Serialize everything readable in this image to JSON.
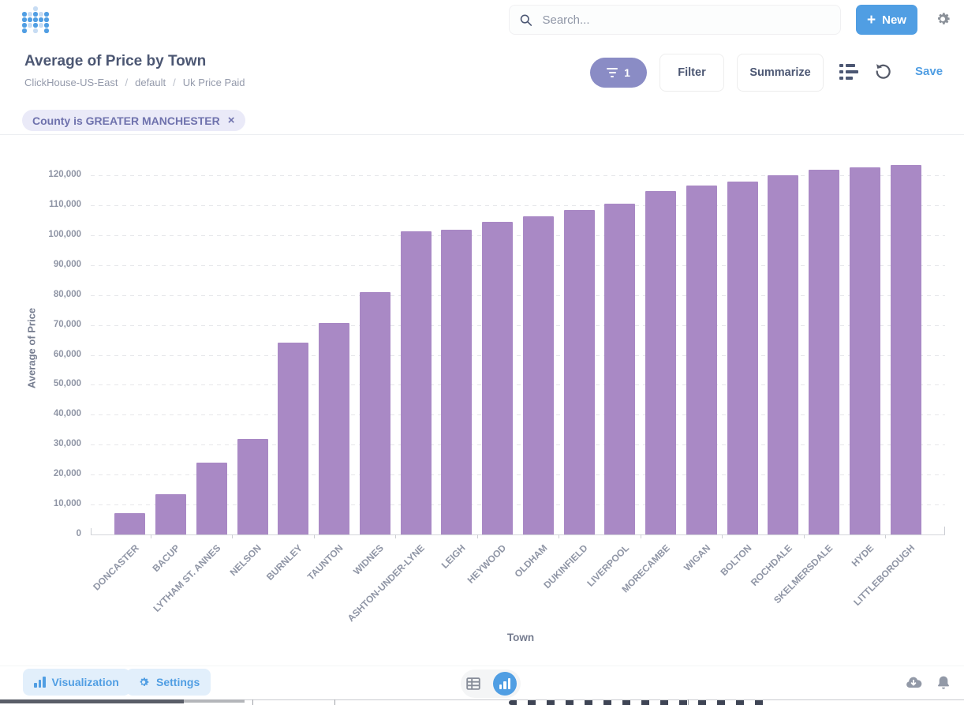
{
  "header": {
    "search_placeholder": "Search...",
    "plus": "+",
    "new_label": "New"
  },
  "question": {
    "title": "Average of Price by Town",
    "breadcrumb": [
      "ClickHouse-US-East",
      "default",
      "Uk Price Paid"
    ],
    "sep": "/",
    "filter_count": "1",
    "filter_label": "Filter",
    "summarize_label": "Summarize",
    "save_label": "Save"
  },
  "filter_chip": {
    "label": "County is GREATER MANCHESTER",
    "close": "×"
  },
  "chart_data": {
    "type": "bar",
    "title": "Average of Price by Town",
    "xlabel": "Town",
    "ylabel": "Average of Price",
    "categories": [
      "DONCASTER",
      "BACUP",
      "LYTHAM ST. ANNES",
      "NELSON",
      "BURNLEY",
      "TAUNTON",
      "WIDNES",
      "ASHTON-UNDER-LYNE",
      "LEIGH",
      "HEYWOOD",
      "OLDHAM",
      "DUKINFIELD",
      "LIVERPOOL",
      "MORECAMBE",
      "WIGAN",
      "BOLTON",
      "ROCHDALE",
      "SKELMERSDALE",
      "HYDE",
      "LITTLEBOROUGH"
    ],
    "values": [
      7100,
      13400,
      24000,
      31900,
      64000,
      70600,
      80900,
      101200,
      101700,
      104500,
      106300,
      108300,
      110600,
      114800,
      116700,
      118000,
      120000,
      121800,
      122600,
      123500
    ],
    "ylim": [
      0,
      130000
    ],
    "ytick_values": [
      0,
      10000,
      20000,
      30000,
      40000,
      50000,
      60000,
      70000,
      80000,
      90000,
      100000,
      110000,
      120000
    ],
    "ytick_labels": [
      "0",
      "10,000",
      "20,000",
      "30,000",
      "40,000",
      "50,000",
      "60,000",
      "70,000",
      "80,000",
      "90,000",
      "100,000",
      "110,000",
      "120,000"
    ],
    "grid": "dashed horizontal",
    "legend": "none",
    "bar_color": "#a989c5"
  },
  "footer": {
    "visualization_label": "Visualization",
    "settings_label": "Settings"
  },
  "colors": {
    "brand": "#509ee3",
    "bar": "#a989c5",
    "filter_pill": "#8a8cc5",
    "chip_bg": "#eaeaf8",
    "chip_text": "#6f72ad",
    "text_dark": "#4c5773",
    "text_muted": "#949aab"
  }
}
